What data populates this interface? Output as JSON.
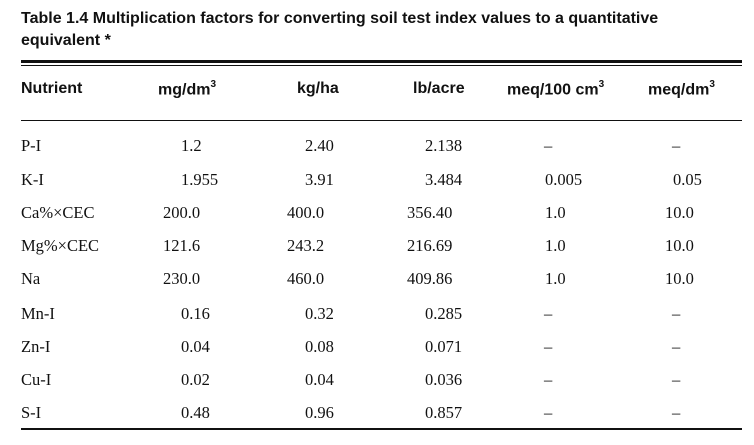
{
  "caption": {
    "line1": "Table 1.4  Multiplication factors for converting soil test index values to a quantitative",
    "line2": "equivalent *"
  },
  "headers": {
    "nutrient": "Nutrient",
    "mg_base": "mg/dm",
    "kg": "kg/ha",
    "lb": "lb/acre",
    "meq100_base": "meq/100 cm",
    "meqdm_base": "meq/dm",
    "sup3": "3"
  },
  "rows": [
    {
      "nutrient": "P-I",
      "mg": "1.2",
      "kg": "2.40",
      "lb": "2.138",
      "meq100": "–",
      "meqdm": "–"
    },
    {
      "nutrient": "K-I",
      "mg": "1.955",
      "kg": "3.91",
      "lb": "3.484",
      "meq100": "0.005",
      "meqdm": "0.05"
    },
    {
      "nutrient": "Ca%×CEC",
      "mg": "200.0",
      "kg": "400.0",
      "lb": "356.40",
      "meq100": "1.0",
      "meqdm": "10.0"
    },
    {
      "nutrient": "Mg%×CEC",
      "mg": "121.6",
      "kg": "243.2",
      "lb": "216.69",
      "meq100": "1.0",
      "meqdm": "10.0"
    },
    {
      "nutrient": "Na",
      "mg": "230.0",
      "kg": "460.0",
      "lb": "409.86",
      "meq100": "1.0",
      "meqdm": "10.0"
    },
    {
      "nutrient": "Mn-I",
      "mg": "0.16",
      "kg": "0.32",
      "lb": "0.285",
      "meq100": "–",
      "meqdm": "–"
    },
    {
      "nutrient": "Zn-I",
      "mg": "0.04",
      "kg": "0.08",
      "lb": "0.071",
      "meq100": "–",
      "meqdm": "–"
    },
    {
      "nutrient": "Cu-I",
      "mg": "0.02",
      "kg": "0.04",
      "lb": "0.036",
      "meq100": "–",
      "meqdm": "–"
    },
    {
      "nutrient": "S-I",
      "mg": "0.48",
      "kg": "0.96",
      "lb": "0.857",
      "meq100": "–",
      "meqdm": "–"
    }
  ]
}
